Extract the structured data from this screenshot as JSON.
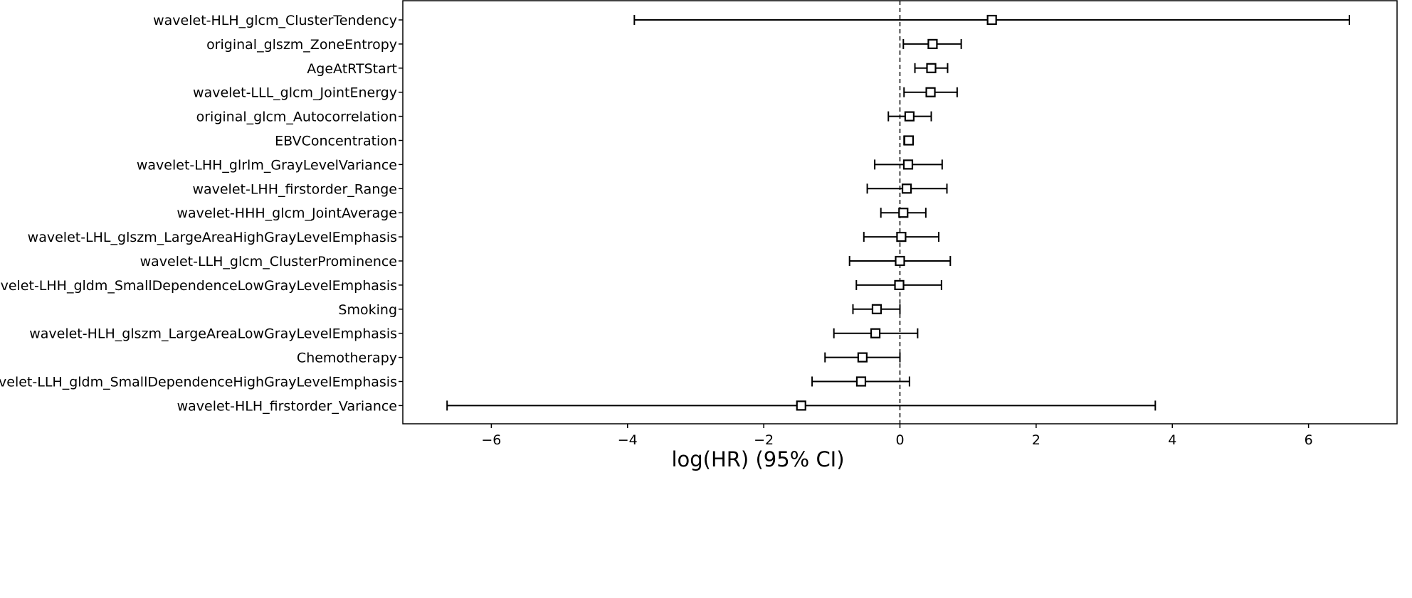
{
  "chart_data": {
    "type": "forest",
    "xlabel": "log(HR) (95% CI)",
    "ylabel": "",
    "title": "",
    "xlim": [
      -7.3,
      7.3
    ],
    "xticks": [
      -6,
      -4,
      -2,
      0,
      2,
      4,
      6
    ],
    "xtick_labels": [
      "−6",
      "−4",
      "−2",
      "0",
      "2",
      "4",
      "6"
    ],
    "reference_line": 0,
    "grid": false,
    "rows": [
      {
        "label": "wavelet-HLH_glcm_ClusterTendency",
        "coef": 1.35,
        "lower": -3.9,
        "upper": 6.6
      },
      {
        "label": "original_glszm_ZoneEntropy",
        "coef": 0.48,
        "lower": 0.05,
        "upper": 0.9
      },
      {
        "label": "AgeAtRTStart",
        "coef": 0.46,
        "lower": 0.22,
        "upper": 0.7
      },
      {
        "label": "wavelet-LLL_glcm_JointEnergy",
        "coef": 0.45,
        "lower": 0.06,
        "upper": 0.84
      },
      {
        "label": "original_glcm_Autocorrelation",
        "coef": 0.14,
        "lower": -0.17,
        "upper": 0.46
      },
      {
        "label": "EBVConcentration",
        "coef": 0.13,
        "lower": 0.06,
        "upper": 0.19
      },
      {
        "label": "wavelet-LHH_glrlm_GrayLevelVariance",
        "coef": 0.12,
        "lower": -0.37,
        "upper": 0.62
      },
      {
        "label": "wavelet-LHH_firstorder_Range",
        "coef": 0.1,
        "lower": -0.48,
        "upper": 0.69
      },
      {
        "label": "wavelet-HHH_glcm_JointAverage",
        "coef": 0.05,
        "lower": -0.28,
        "upper": 0.38
      },
      {
        "label": "wavelet-LHL_glszm_LargeAreaHighGrayLevelEmphasis",
        "coef": 0.02,
        "lower": -0.53,
        "upper": 0.57
      },
      {
        "label": "wavelet-LLH_glcm_ClusterProminence",
        "coef": 0.0,
        "lower": -0.74,
        "upper": 0.74
      },
      {
        "label": "wavelet-LHH_gldm_SmallDependenceLowGrayLevelEmphasis",
        "coef": -0.01,
        "lower": -0.64,
        "upper": 0.61
      },
      {
        "label": "Smoking",
        "coef": -0.34,
        "lower": -0.69,
        "upper": 0.0
      },
      {
        "label": "wavelet-HLH_glszm_LargeAreaLowGrayLevelEmphasis",
        "coef": -0.36,
        "lower": -0.97,
        "upper": 0.26
      },
      {
        "label": "Chemotherapy",
        "coef": -0.55,
        "lower": -1.1,
        "upper": 0.0
      },
      {
        "label": "wavelet-LLH_gldm_SmallDependenceHighGrayLevelEmphasis",
        "coef": -0.57,
        "lower": -1.29,
        "upper": 0.14
      },
      {
        "label": "wavelet-HLH_firstorder_Variance",
        "coef": -1.45,
        "lower": -6.65,
        "upper": 3.75
      }
    ]
  }
}
